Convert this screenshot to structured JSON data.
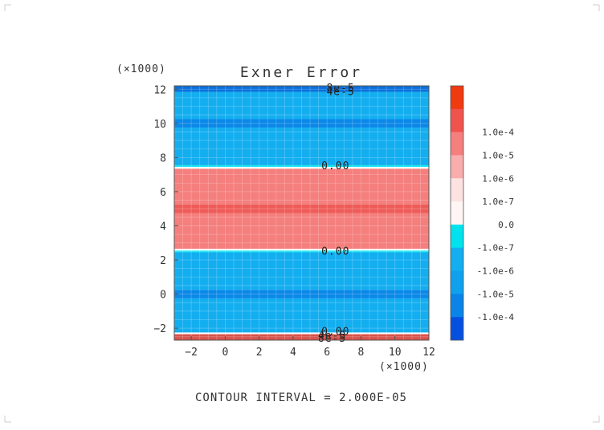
{
  "chart_data": {
    "type": "heatmap",
    "title": "Exner Error",
    "x_multiplier_label": "(×1000)",
    "y_multiplier_label": "(×1000)",
    "xlim": [
      -3,
      12
    ],
    "ylim": [
      -2.7,
      12.2
    ],
    "x_ticks": [
      -2,
      0,
      2,
      4,
      6,
      8,
      10,
      12
    ],
    "y_ticks": [
      -2,
      0,
      2,
      4,
      6,
      8,
      10,
      12
    ],
    "grid": true,
    "bands": [
      {
        "y0": -2.7,
        "y1": -2.35,
        "color": "#d9534b"
      },
      {
        "y0": -2.35,
        "y1": -2.25,
        "color": "#ffffff"
      },
      {
        "y0": -2.25,
        "y1": -0.25,
        "color": "#13aef0"
      },
      {
        "y0": -0.25,
        "y1": 0.25,
        "color": "#0a88e8"
      },
      {
        "y0": 0.25,
        "y1": 2.45,
        "color": "#13aef0"
      },
      {
        "y0": 2.45,
        "y1": 2.55,
        "color": "#00e3ef"
      },
      {
        "y0": 2.55,
        "y1": 2.65,
        "color": "#ffffff"
      },
      {
        "y0": 2.65,
        "y1": 4.75,
        "color": "#f47f7d"
      },
      {
        "y0": 4.75,
        "y1": 5.25,
        "color": "#ee5b58"
      },
      {
        "y0": 5.25,
        "y1": 7.35,
        "color": "#f47f7d"
      },
      {
        "y0": 7.35,
        "y1": 7.45,
        "color": "#ffffff"
      },
      {
        "y0": 7.45,
        "y1": 7.55,
        "color": "#00e3ef"
      },
      {
        "y0": 7.55,
        "y1": 9.75,
        "color": "#13aef0"
      },
      {
        "y0": 9.75,
        "y1": 10.25,
        "color": "#0a88e8"
      },
      {
        "y0": 10.25,
        "y1": 11.85,
        "color": "#13aef0"
      },
      {
        "y0": 11.85,
        "y1": 12.2,
        "color": "#0a70dc"
      }
    ],
    "contour_labels": [
      {
        "text": "0.00",
        "x": 6.5,
        "y": 7.5
      },
      {
        "text": "0.00",
        "x": 6.5,
        "y": 2.5
      },
      {
        "text": "0.00",
        "x": 6.5,
        "y": -2.2
      },
      {
        "text": "8e-5",
        "x": 6.8,
        "y": 12.05
      },
      {
        "text": "4e-5",
        "x": 6.8,
        "y": 11.85
      },
      {
        "text": "4e-5",
        "x": 6.3,
        "y": -2.45
      },
      {
        "text": "8e-5",
        "x": 6.3,
        "y": -2.6
      }
    ],
    "colorbar": {
      "levels": [
        {
          "label": "",
          "color": "#f03a10"
        },
        {
          "label": "1.0e-4",
          "color": "#f0534e"
        },
        {
          "label": "1.0e-5",
          "color": "#f47f7d"
        },
        {
          "label": "1.0e-6",
          "color": "#f9adad"
        },
        {
          "label": "1.0e-7",
          "color": "#fde2e2"
        },
        {
          "label": "0.0",
          "color": "#fff5f5"
        },
        {
          "label": "-1.0e-7",
          "color": "#00e3ef"
        },
        {
          "label": "-1.0e-6",
          "color": "#13aef0"
        },
        {
          "label": "-1.0e-5",
          "color": "#0fa0ee"
        },
        {
          "label": "-1.0e-4",
          "color": "#0a84e6"
        },
        {
          "label": "",
          "color": "#0650e0"
        }
      ]
    },
    "footer": "CONTOUR INTERVAL = 2.000E-05"
  }
}
